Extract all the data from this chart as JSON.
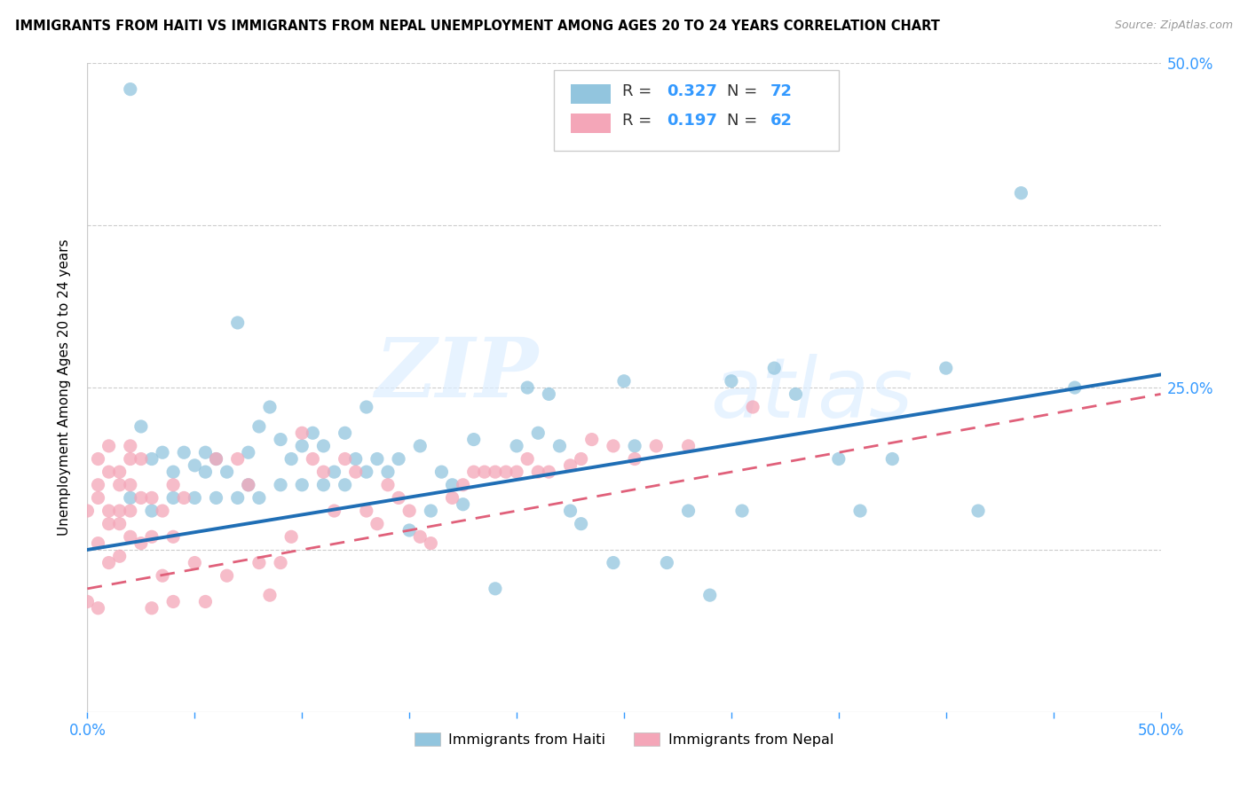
{
  "title": "IMMIGRANTS FROM HAITI VS IMMIGRANTS FROM NEPAL UNEMPLOYMENT AMONG AGES 20 TO 24 YEARS CORRELATION CHART",
  "source": "Source: ZipAtlas.com",
  "ylabel": "Unemployment Among Ages 20 to 24 years",
  "xlim": [
    0.0,
    0.5
  ],
  "ylim": [
    0.0,
    0.5
  ],
  "legend_haiti_R": "0.327",
  "legend_haiti_N": "72",
  "legend_nepal_R": "0.197",
  "legend_nepal_N": "62",
  "haiti_color": "#92c5de",
  "nepal_color": "#f4a6b8",
  "haiti_line_color": "#1f6eb5",
  "nepal_line_color": "#e0607a",
  "watermark_zip": "ZIP",
  "watermark_atlas": "atlas",
  "background_color": "#ffffff",
  "haiti_x": [
    0.02,
    0.025,
    0.03,
    0.035,
    0.04,
    0.045,
    0.05,
    0.055,
    0.06,
    0.065,
    0.07,
    0.075,
    0.08,
    0.085,
    0.09,
    0.095,
    0.1,
    0.105,
    0.11,
    0.115,
    0.12,
    0.125,
    0.13,
    0.135,
    0.14,
    0.145,
    0.15,
    0.155,
    0.16,
    0.165,
    0.17,
    0.175,
    0.18,
    0.19,
    0.2,
    0.205,
    0.21,
    0.215,
    0.22,
    0.225,
    0.23,
    0.245,
    0.25,
    0.255,
    0.27,
    0.28,
    0.29,
    0.3,
    0.305,
    0.32,
    0.33,
    0.35,
    0.36,
    0.375,
    0.4,
    0.415,
    0.435,
    0.46,
    0.02,
    0.03,
    0.04,
    0.05,
    0.055,
    0.06,
    0.07,
    0.075,
    0.08,
    0.09,
    0.1,
    0.11,
    0.12,
    0.13
  ],
  "haiti_y": [
    0.48,
    0.22,
    0.195,
    0.2,
    0.185,
    0.2,
    0.19,
    0.2,
    0.195,
    0.185,
    0.3,
    0.2,
    0.22,
    0.235,
    0.21,
    0.195,
    0.205,
    0.215,
    0.205,
    0.185,
    0.215,
    0.195,
    0.235,
    0.195,
    0.185,
    0.195,
    0.14,
    0.205,
    0.155,
    0.185,
    0.175,
    0.16,
    0.21,
    0.095,
    0.205,
    0.25,
    0.215,
    0.245,
    0.205,
    0.155,
    0.145,
    0.115,
    0.255,
    0.205,
    0.115,
    0.155,
    0.09,
    0.255,
    0.155,
    0.265,
    0.245,
    0.195,
    0.155,
    0.195,
    0.265,
    0.155,
    0.4,
    0.25,
    0.165,
    0.155,
    0.165,
    0.165,
    0.185,
    0.165,
    0.165,
    0.175,
    0.165,
    0.175,
    0.175,
    0.175,
    0.175,
    0.185
  ],
  "nepal_x": [
    0.0,
    0.005,
    0.005,
    0.005,
    0.01,
    0.01,
    0.01,
    0.015,
    0.015,
    0.015,
    0.02,
    0.02,
    0.02,
    0.025,
    0.025,
    0.03,
    0.03,
    0.035,
    0.04,
    0.04,
    0.045,
    0.05,
    0.055,
    0.06,
    0.065,
    0.07,
    0.075,
    0.08,
    0.085,
    0.09,
    0.095,
    0.1,
    0.105,
    0.11,
    0.115,
    0.12,
    0.125,
    0.13,
    0.135,
    0.14,
    0.145,
    0.15,
    0.155,
    0.16,
    0.17,
    0.175,
    0.18,
    0.185,
    0.19,
    0.195,
    0.2,
    0.205,
    0.21,
    0.215,
    0.225,
    0.23,
    0.235,
    0.245,
    0.255,
    0.265,
    0.28,
    0.31
  ],
  "nepal_y": [
    0.155,
    0.195,
    0.175,
    0.165,
    0.205,
    0.185,
    0.155,
    0.185,
    0.175,
    0.155,
    0.205,
    0.195,
    0.175,
    0.195,
    0.165,
    0.165,
    0.135,
    0.155,
    0.135,
    0.175,
    0.165,
    0.115,
    0.085,
    0.195,
    0.105,
    0.195,
    0.175,
    0.115,
    0.09,
    0.115,
    0.135,
    0.215,
    0.195,
    0.185,
    0.155,
    0.195,
    0.185,
    0.155,
    0.145,
    0.175,
    0.165,
    0.155,
    0.135,
    0.13,
    0.165,
    0.175,
    0.185,
    0.185,
    0.185,
    0.185,
    0.185,
    0.195,
    0.185,
    0.185,
    0.19,
    0.195,
    0.21,
    0.205,
    0.195,
    0.205,
    0.205,
    0.235
  ],
  "nepal_extra_x": [
    0.0,
    0.005,
    0.005,
    0.01,
    0.01,
    0.015,
    0.015,
    0.02,
    0.02,
    0.025,
    0.03,
    0.035,
    0.04
  ],
  "nepal_extra_y": [
    0.085,
    0.13,
    0.08,
    0.145,
    0.115,
    0.145,
    0.12,
    0.155,
    0.135,
    0.13,
    0.08,
    0.105,
    0.085
  ]
}
